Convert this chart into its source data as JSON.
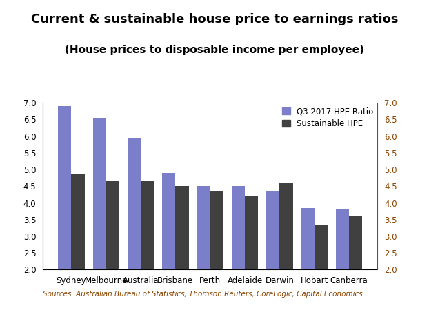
{
  "title": "Current & sustainable house price to earnings ratios",
  "subtitle": "(House prices to disposable income per employee)",
  "categories": [
    "Sydney",
    "Melbourne",
    "Australia",
    "Brisbane",
    "Perth",
    "Adelaide",
    "Darwin",
    "Hobart",
    "Canberra"
  ],
  "q3_2017": [
    6.9,
    6.55,
    5.95,
    4.9,
    4.5,
    4.5,
    4.35,
    3.85,
    3.82
  ],
  "sustainable": [
    4.85,
    4.65,
    4.65,
    4.5,
    4.35,
    4.2,
    4.6,
    3.35,
    3.6
  ],
  "bar_color_q3": "#7B7EC8",
  "bar_color_sus": "#404040",
  "right_tick_color": "#8B4500",
  "ylim": [
    2.0,
    7.0
  ],
  "yticks": [
    2.0,
    2.5,
    3.0,
    3.5,
    4.0,
    4.5,
    5.0,
    5.5,
    6.0,
    6.5,
    7.0
  ],
  "legend_q3": "Q3 2017 HPE Ratio",
  "legend_sus": "Sustainable HPE",
  "source_text": "Sources: Australian Bureau of Statistics, Thomson Reuters, CoreLogic, Capital Economics",
  "title_fontsize": 13,
  "subtitle_fontsize": 11,
  "source_fontsize": 7.5,
  "tick_fontsize": 8.5,
  "legend_fontsize": 8.5,
  "background_color": "#ffffff"
}
